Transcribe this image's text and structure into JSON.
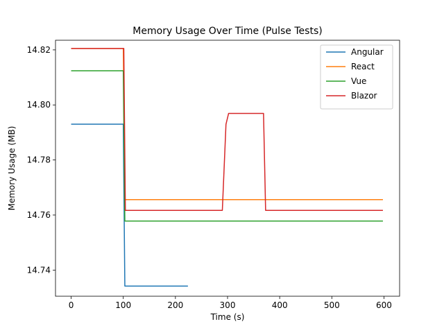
{
  "chart_data": {
    "type": "line",
    "title": "Memory Usage Over Time (Pulse Tests)",
    "xlabel": "Time (s)",
    "ylabel": "Memory Usage (MB)",
    "xlim": [
      -30,
      630
    ],
    "ylim": [
      14.7305,
      14.8235
    ],
    "xticks": [
      0,
      100,
      200,
      300,
      400,
      500,
      600
    ],
    "xtick_labels": [
      "0",
      "100",
      "200",
      "300",
      "400",
      "500",
      "600"
    ],
    "yticks": [
      14.74,
      14.76,
      14.78,
      14.8,
      14.82
    ],
    "ytick_labels": [
      "14.74",
      "14.76",
      "14.78",
      "14.80",
      "14.82"
    ],
    "grid": false,
    "legend_position": "top-right",
    "series": [
      {
        "name": "Angular",
        "color": "#1f77b4",
        "points": [
          [
            0,
            14.793
          ],
          [
            100,
            14.793
          ],
          [
            103,
            14.7342
          ],
          [
            224,
            14.7342
          ]
        ]
      },
      {
        "name": "React",
        "color": "#ff7f0e",
        "points": [
          [
            0,
            14.8205
          ],
          [
            100,
            14.8205
          ],
          [
            103,
            14.7656
          ],
          [
            598,
            14.7656
          ]
        ]
      },
      {
        "name": "Vue",
        "color": "#2ca02c",
        "points": [
          [
            0,
            14.8124
          ],
          [
            100,
            14.8124
          ],
          [
            103,
            14.7578
          ],
          [
            598,
            14.7578
          ]
        ]
      },
      {
        "name": "Blazor",
        "color": "#d62728",
        "points": [
          [
            0,
            14.8205
          ],
          [
            101,
            14.8205
          ],
          [
            104,
            14.7617
          ],
          [
            290,
            14.7617
          ],
          [
            297,
            14.793
          ],
          [
            302,
            14.7969
          ],
          [
            369,
            14.7969
          ],
          [
            373,
            14.7617
          ],
          [
            598,
            14.7617
          ]
        ]
      }
    ]
  }
}
